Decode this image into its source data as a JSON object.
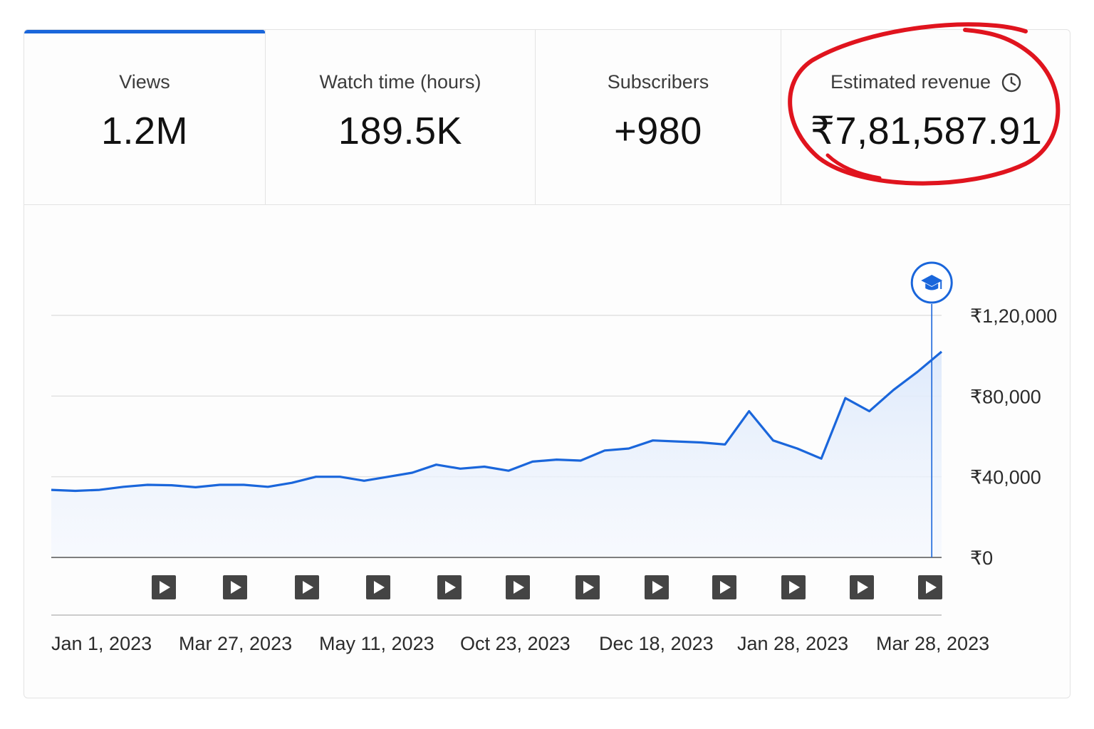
{
  "metrics": [
    {
      "label": "Views",
      "value": "1.2M"
    },
    {
      "label": "Watch time (hours)",
      "value": "189.5K"
    },
    {
      "label": "Subscribers",
      "value": "+980"
    },
    {
      "label": "Estimated revenue",
      "value": "₹7,81,587.91"
    }
  ],
  "selected_tab": "Views",
  "highlight": {
    "target": "Estimated revenue",
    "color": "#e0141e"
  },
  "icons": {
    "revenue_info": "clock-icon",
    "milestone": "graduation-cap-icon",
    "video_markers": "play-icon"
  },
  "colors": {
    "accent": "#1a66db",
    "area_fill": "#dde9fb",
    "marker": "#444444"
  },
  "chart_data": {
    "type": "area",
    "title": "",
    "xlabel": "",
    "ylabel": "",
    "ylim": [
      0,
      120000
    ],
    "y_ticks": [
      "₹0",
      "₹40,000",
      "₹80,000",
      "₹1,20,000"
    ],
    "y_tick_values": [
      0,
      40000,
      80000,
      120000
    ],
    "x_tick_labels": [
      "Jan 1, 2023",
      "Mar 27, 2023",
      "May 11, 2023",
      "Oct 23, 2023",
      "Dec 18, 2023",
      "Jan 28, 2023",
      "Mar 28, 2023"
    ],
    "grid": true,
    "series": [
      {
        "values": [
          33500,
          33000,
          33500,
          35000,
          36000,
          35800,
          34800,
          36000,
          36000,
          35000,
          37000,
          40000,
          40000,
          38000,
          40000,
          42000,
          46000,
          44000,
          45000,
          43000,
          47500,
          48500,
          48000,
          53000,
          54000,
          58000,
          57500,
          57000,
          56000,
          72500,
          58000,
          54000,
          49000,
          79000,
          72500,
          83000,
          92000,
          102000
        ]
      }
    ],
    "milestone_index": 36,
    "video_markers": 12
  }
}
